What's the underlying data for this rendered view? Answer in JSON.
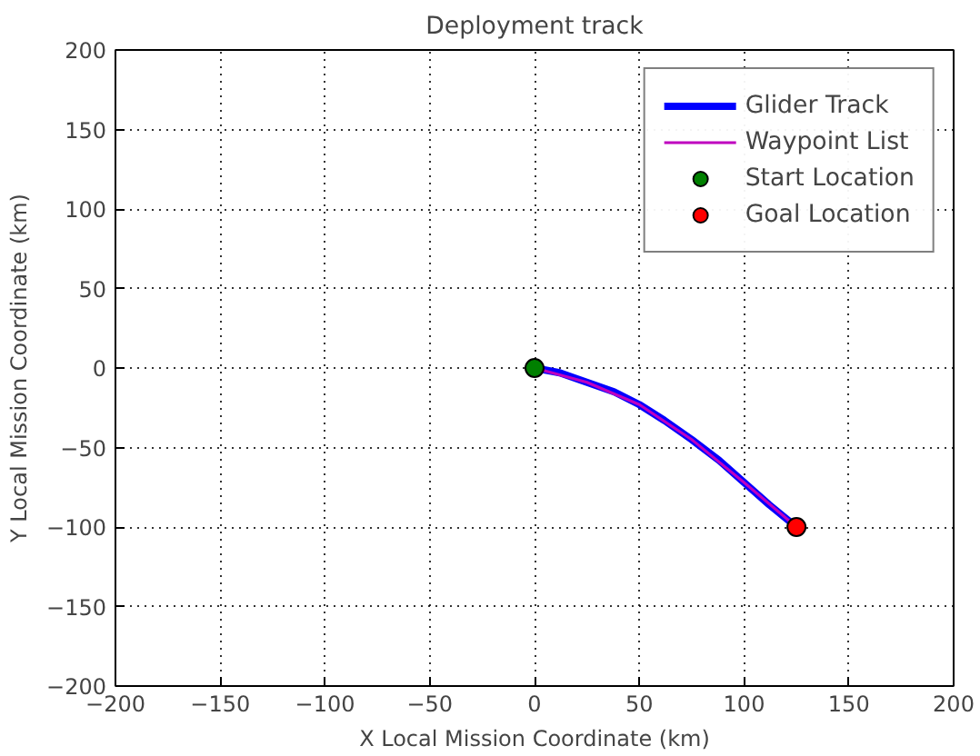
{
  "chart_data": {
    "type": "line",
    "title": "Deployment track",
    "xlabel": "X Local Mission Coordinate (km)",
    "ylabel": "Y Local Mission Coordinate (km)",
    "xlim": [
      -200,
      200
    ],
    "ylim": [
      -200,
      200
    ],
    "xticks": [
      -200,
      -150,
      -100,
      -50,
      0,
      50,
      100,
      150,
      200
    ],
    "yticks": [
      -200,
      -150,
      -100,
      -50,
      0,
      50,
      100,
      150,
      200
    ],
    "grid": true,
    "legend": "top right",
    "series": [
      {
        "name": "Glider Track",
        "color": "#0000ff",
        "x": [
          0,
          12,
          25,
          38,
          50,
          62,
          75,
          88,
          100,
          112,
          125
        ],
        "values": [
          0,
          -3,
          -9,
          -15,
          -23,
          -33,
          -45,
          -58,
          -72,
          -86,
          -100
        ]
      },
      {
        "name": "Waypoint List",
        "color": "#bf00bf",
        "x": [
          0,
          25,
          50,
          75,
          100,
          125
        ],
        "values": [
          0,
          -9,
          -23,
          -45,
          -72,
          -100
        ]
      },
      {
        "name": "Start Location",
        "type": "scatter",
        "marker": "circle",
        "color": "#008000",
        "x": [
          0
        ],
        "values": [
          0
        ]
      },
      {
        "name": "Goal Location",
        "type": "scatter",
        "marker": "circle",
        "color": "#ff0000",
        "x": [
          125
        ],
        "values": [
          -100
        ]
      }
    ]
  }
}
